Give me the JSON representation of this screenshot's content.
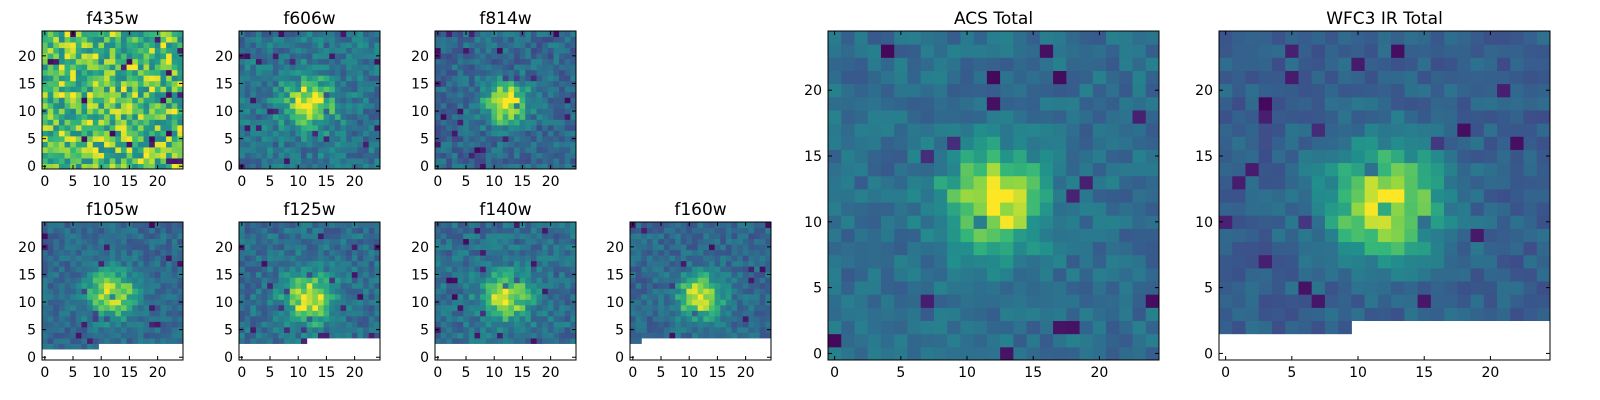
{
  "chart_data": [
    {
      "type": "heatmap",
      "title": "f435w",
      "xlim": [
        0,
        24
      ],
      "ylim": [
        0,
        24
      ],
      "xticks": [
        0,
        5,
        10,
        15,
        20
      ],
      "yticks": [
        0,
        5,
        10,
        15,
        20
      ],
      "colormap": "viridis",
      "source_blob": {
        "cx": 12,
        "cy": 11,
        "peak": 0.0,
        "sigma": 3.0
      },
      "background_level": 0.78,
      "noise_level": 0.22,
      "missing_region": null
    },
    {
      "type": "heatmap",
      "title": "f606w",
      "xlim": [
        0,
        24
      ],
      "ylim": [
        0,
        24
      ],
      "xticks": [
        0,
        5,
        10,
        15,
        20
      ],
      "yticks": [
        0,
        5,
        10,
        15,
        20
      ],
      "colormap": "viridis",
      "source_blob": {
        "cx": 12,
        "cy": 11.5,
        "peak": 0.55,
        "sigma": 3.0
      },
      "background_level": 0.48,
      "noise_level": 0.16,
      "missing_region": null
    },
    {
      "type": "heatmap",
      "title": "f814w",
      "xlim": [
        0,
        24
      ],
      "ylim": [
        0,
        24
      ],
      "xticks": [
        0,
        5,
        10,
        15,
        20
      ],
      "yticks": [
        0,
        5,
        10,
        15,
        20
      ],
      "colormap": "viridis",
      "source_blob": {
        "cx": 12,
        "cy": 11.5,
        "peak": 0.6,
        "sigma": 2.8
      },
      "background_level": 0.42,
      "noise_level": 0.15,
      "missing_region": null
    },
    {
      "type": "heatmap",
      "title": "f105w",
      "xlim": [
        0,
        24
      ],
      "ylim": [
        0,
        24
      ],
      "xticks": [
        0,
        5,
        10,
        15,
        20
      ],
      "yticks": [
        0,
        5,
        10,
        15,
        20
      ],
      "colormap": "viridis",
      "source_blob": {
        "cx": 12,
        "cy": 11.5,
        "peak": 0.55,
        "sigma": 3.2
      },
      "background_level": 0.42,
      "noise_level": 0.12,
      "missing_region": {
        "below_y": 2.5,
        "x_from": 10,
        "below_y_from": 1.5
      }
    },
    {
      "type": "heatmap",
      "title": "f125w",
      "xlim": [
        0,
        24
      ],
      "ylim": [
        0,
        24
      ],
      "xticks": [
        0,
        5,
        10,
        15,
        20
      ],
      "yticks": [
        0,
        5,
        10,
        15,
        20
      ],
      "colormap": "viridis",
      "source_blob": {
        "cx": 12,
        "cy": 10.5,
        "peak": 0.55,
        "sigma": 3.2
      },
      "background_level": 0.45,
      "noise_level": 0.14,
      "missing_region": {
        "below_y": 3.5,
        "x_from": 12,
        "below_y_from": 2.5
      }
    },
    {
      "type": "heatmap",
      "title": "f140w",
      "xlim": [
        0,
        24
      ],
      "ylim": [
        0,
        24
      ],
      "xticks": [
        0,
        5,
        10,
        15,
        20
      ],
      "yticks": [
        0,
        5,
        10,
        15,
        20
      ],
      "colormap": "viridis",
      "source_blob": {
        "cx": 12,
        "cy": 11,
        "peak": 0.5,
        "sigma": 3.2
      },
      "background_level": 0.45,
      "noise_level": 0.14,
      "missing_region": {
        "below_y": 2.5,
        "x_from": 0,
        "below_y_from": 2.5
      }
    },
    {
      "type": "heatmap",
      "title": "f160w",
      "xlim": [
        0,
        24
      ],
      "ylim": [
        0,
        24
      ],
      "xticks": [
        0,
        5,
        10,
        15,
        20
      ],
      "yticks": [
        0,
        5,
        10,
        15,
        20
      ],
      "colormap": "viridis",
      "source_blob": {
        "cx": 12,
        "cy": 11,
        "peak": 0.55,
        "sigma": 3.0
      },
      "background_level": 0.42,
      "noise_level": 0.12,
      "missing_region": {
        "below_y": 3.5,
        "x_from": 2,
        "below_y_from": 2.5
      }
    },
    {
      "type": "heatmap",
      "title": "ACS Total",
      "xlim": [
        0,
        24
      ],
      "ylim": [
        0,
        24
      ],
      "xticks": [
        0,
        5,
        10,
        15,
        20
      ],
      "yticks": [
        0,
        5,
        10,
        15,
        20
      ],
      "colormap": "viridis",
      "source_blob": {
        "cx": 12,
        "cy": 11.5,
        "peak": 0.55,
        "sigma": 2.8
      },
      "background_level": 0.45,
      "noise_level": 0.1,
      "missing_region": null
    },
    {
      "type": "heatmap",
      "title": "WFC3 IR Total",
      "xlim": [
        0,
        24
      ],
      "ylim": [
        0,
        24
      ],
      "xticks": [
        0,
        5,
        10,
        15,
        20
      ],
      "yticks": [
        0,
        5,
        10,
        15,
        20
      ],
      "colormap": "viridis",
      "source_blob": {
        "cx": 12,
        "cy": 11.5,
        "peak": 0.6,
        "sigma": 3.2
      },
      "background_level": 0.38,
      "noise_level": 0.09,
      "missing_region": {
        "below_y": 2.5,
        "x_from": 10,
        "below_y_from": 1.5
      }
    }
  ]
}
